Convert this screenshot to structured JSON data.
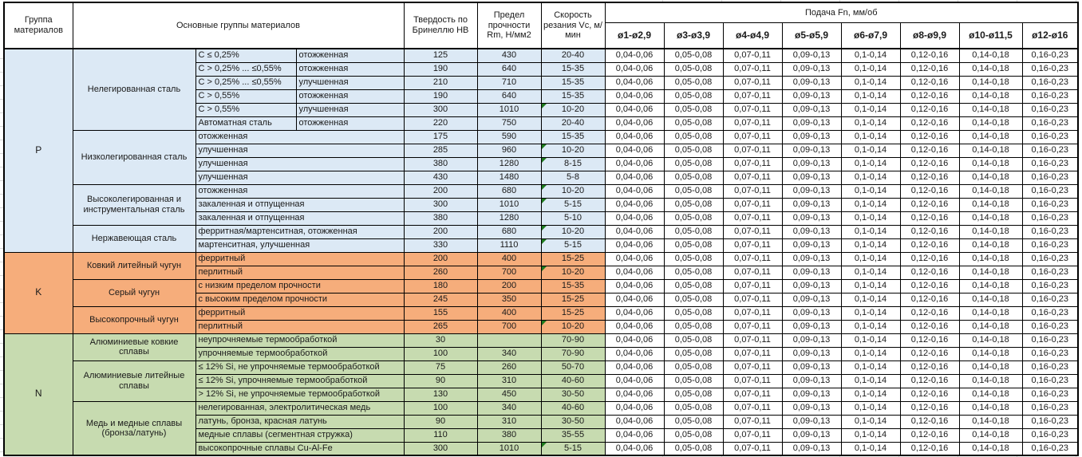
{
  "sheet": {
    "header": {
      "group_col": "Группа материалов",
      "materials_col": "Основные группы материалов",
      "hardness_col": "Твердость по Бринеллю HB",
      "strength_col": "Предел прочности Rm, Н/мм2",
      "speed_col": "Скорость резания Vc, м/мин",
      "feed_col": "Подача Fn, мм/об",
      "feed_diameters": [
        "ø1-ø2,9",
        "ø3-ø3,9",
        "ø4-ø4,9",
        "ø5-ø5,9",
        "ø6-ø7,9",
        "ø8-ø9,9",
        "ø10-ø11,5",
        "ø12-ø16"
      ]
    },
    "feed_values_all_rows": [
      "0,04-0,06",
      "0,05-0,08",
      "0,07-0,11",
      "0,09-0,13",
      "0,1-0,14",
      "0,12-0,16",
      "0,14-0,18",
      "0,16-0,23"
    ],
    "colors": {
      "group_P": "#DCE9F5",
      "group_K": "#F6AD7B",
      "group_N": "#C7DBB0",
      "flag": "#1E7B1E"
    },
    "groups": [
      {
        "letter": "P",
        "subgroups": [
          {
            "name": "Нелегированная сталь",
            "rows": [
              {
                "spec": "С ≤ 0,25%",
                "state": "отожженная",
                "hb": "125",
                "rm": "430",
                "vc": "20-40"
              },
              {
                "spec": "С > 0,25% ... ≤0,55%",
                "state": "отожженная",
                "hb": "190",
                "rm": "640",
                "vc": "15-35"
              },
              {
                "spec": "С > 0,25% ... ≤0,55%",
                "state": "улучшенная",
                "hb": "210",
                "rm": "710",
                "vc": "15-35"
              },
              {
                "spec": "С > 0,55%",
                "state": "отожженная",
                "hb": "190",
                "rm": "640",
                "vc": "15-35"
              },
              {
                "spec": "С > 0,55%",
                "state": "улучшенная",
                "hb": "300",
                "rm": "1010",
                "vc": "10-20",
                "flag": true
              },
              {
                "spec": "Автоматная сталь",
                "state": "отожженная",
                "hb": "220",
                "rm": "750",
                "vc": "20-40"
              }
            ]
          },
          {
            "name": "Низколегированная сталь",
            "rows": [
              {
                "state": "отожженная",
                "hb": "175",
                "rm": "590",
                "vc": "15-35"
              },
              {
                "state": "улучшенная",
                "hb": "285",
                "rm": "960",
                "vc": "10-20",
                "flag": true
              },
              {
                "state": "улучшенная",
                "hb": "380",
                "rm": "1280",
                "vc": "8-15",
                "flag": true
              },
              {
                "state": "улучшенная",
                "hb": "430",
                "rm": "1480",
                "vc": "5-8"
              }
            ]
          },
          {
            "name": "Высоколегированная и инструментальная сталь",
            "rows": [
              {
                "state": "отожженная",
                "hb": "200",
                "rm": "680",
                "vc": "10-20",
                "flag": true
              },
              {
                "state": "закаленная и отпущенная",
                "hb": "300",
                "rm": "1010",
                "vc": "5-15",
                "flag": true
              },
              {
                "state": "закаленная и отпущенная",
                "hb": "380",
                "rm": "1280",
                "vc": "5-10"
              }
            ]
          },
          {
            "name": "Нержавеющая сталь",
            "rows": [
              {
                "state": "ферритная/мартенситная, отожженная",
                "hb": "200",
                "rm": "680",
                "vc": "10-20",
                "flag": true
              },
              {
                "state": "мартенситная, улучшенная",
                "hb": "330",
                "rm": "1110",
                "vc": "5-15",
                "flag": true
              }
            ]
          }
        ]
      },
      {
        "letter": "K",
        "subgroups": [
          {
            "name": "Ковкий литейный чугун",
            "rows": [
              {
                "state": "ферритный",
                "hb": "200",
                "rm": "400",
                "vc": "15-25"
              },
              {
                "state": "перлитный",
                "hb": "260",
                "rm": "700",
                "vc": "10-20",
                "flag": true
              }
            ]
          },
          {
            "name": "Серый чугун",
            "rows": [
              {
                "state": "с низким пределом прочности",
                "hb": "180",
                "rm": "200",
                "vc": "15-35"
              },
              {
                "state": "с высоким пределом прочности",
                "hb": "245",
                "rm": "350",
                "vc": "15-25"
              }
            ]
          },
          {
            "name": "Высокопрочный чугун",
            "rows": [
              {
                "state": "ферритный",
                "hb": "155",
                "rm": "400",
                "vc": "15-25"
              },
              {
                "state": "перлитный",
                "hb": "265",
                "rm": "700",
                "vc": "10-20",
                "flag": true
              }
            ]
          }
        ]
      },
      {
        "letter": "N",
        "subgroups": [
          {
            "name": "Алюминиевые ковкие сплавы",
            "rows": [
              {
                "state": "неупрочняемые термообработкой",
                "hb": "30",
                "rm": "",
                "vc": "70-90"
              },
              {
                "state": "упрочняемые термообработкой",
                "hb": "100",
                "rm": "340",
                "vc": "70-90"
              }
            ]
          },
          {
            "name": "Алюминиевые литейные сплавы",
            "rows": [
              {
                "state": "≤ 12% Si, не упрочняемые термообработкой",
                "hb": "75",
                "rm": "260",
                "vc": "50-70"
              },
              {
                "state": "≤ 12% Si, упрочняемые термообработкой",
                "hb": "90",
                "rm": "310",
                "vc": "40-60"
              },
              {
                "state": "> 12% Si, не упрочняемые термообработкой",
                "hb": "130",
                "rm": "450",
                "vc": "30-50"
              }
            ]
          },
          {
            "name": "Медь и медные сплавы (бронза/латунь)",
            "rows": [
              {
                "state": "нелегированная, электролитическая медь",
                "hb": "100",
                "rm": "340",
                "vc": "40-60"
              },
              {
                "state": "латунь, бронза, красная латунь",
                "hb": "90",
                "rm": "310",
                "vc": "30-50"
              },
              {
                "state": "медные сплавы (сегментная стружка)",
                "hb": "110",
                "rm": "380",
                "vc": "35-55"
              },
              {
                "state": "высокопрочные сплавы Cu-Al-Fe",
                "hb": "300",
                "rm": "1010",
                "vc": "5-15",
                "flag": true
              }
            ]
          }
        ]
      }
    ]
  }
}
